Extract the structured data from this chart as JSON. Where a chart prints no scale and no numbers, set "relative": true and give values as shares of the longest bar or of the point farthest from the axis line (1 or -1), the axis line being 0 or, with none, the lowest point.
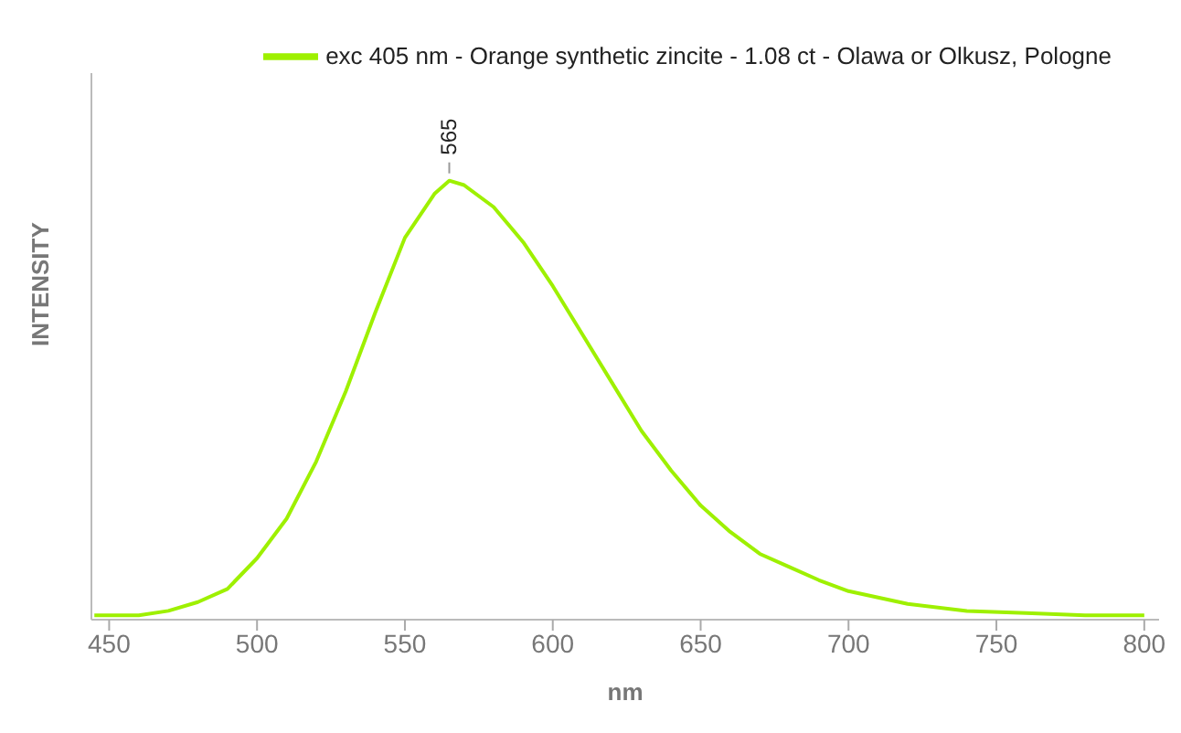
{
  "chart_data": {
    "type": "line",
    "relative": true,
    "xlabel": "nm",
    "ylabel": "INTENSITY",
    "xlim": [
      444,
      805
    ],
    "xticks": [
      450,
      500,
      550,
      600,
      650,
      700,
      750,
      800
    ],
    "legend": "top right",
    "marker": "none",
    "line_style": "solid",
    "x": [
      445,
      460,
      470,
      480,
      490,
      500,
      510,
      520,
      530,
      540,
      550,
      560,
      565,
      570,
      580,
      590,
      600,
      610,
      620,
      630,
      640,
      650,
      660,
      670,
      680,
      690,
      700,
      720,
      740,
      760,
      780,
      800
    ],
    "series": [
      {
        "name": "exc 405 nm - Orange synthetic zincite - 1.08 ct - Olawa or Olkusz, Pologne",
        "color": "#9ef000",
        "values": [
          0.01,
          0.01,
          0.02,
          0.04,
          0.07,
          0.14,
          0.23,
          0.36,
          0.52,
          0.7,
          0.87,
          0.97,
          1.0,
          0.99,
          0.94,
          0.86,
          0.76,
          0.65,
          0.54,
          0.43,
          0.34,
          0.26,
          0.2,
          0.15,
          0.12,
          0.09,
          0.065,
          0.036,
          0.02,
          0.015,
          0.01,
          0.01
        ]
      }
    ],
    "annotations": [
      {
        "text": "565",
        "x": 565,
        "y": 1.0
      }
    ]
  }
}
